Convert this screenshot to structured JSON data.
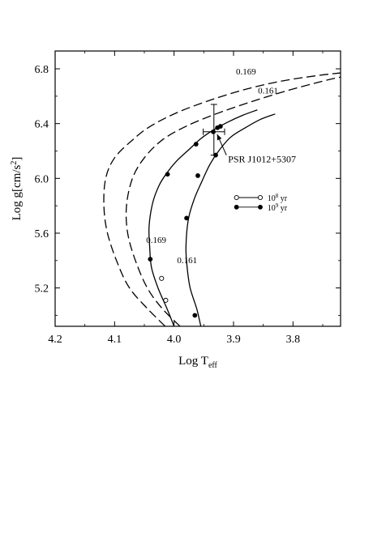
{
  "chart_data": {
    "type": "line",
    "xlabel": "Log T",
    "xlabel_sub": "eff",
    "ylabel": "Log g[cm/s",
    "ylabel_sup": "2",
    "ylabel_end": "]",
    "xlim": [
      4.2,
      3.72
    ],
    "ylim": [
      4.92,
      6.93
    ],
    "x_reversed": true,
    "xticks": [
      4.2,
      4.1,
      4.0,
      3.9,
      3.8
    ],
    "xtick_labels": [
      "4.2",
      "4.1",
      "4.0",
      "3.9",
      "3.8"
    ],
    "yticks": [
      5.2,
      5.6,
      6.0,
      6.4,
      6.8
    ],
    "ytick_labels": [
      "5.2",
      "5.6",
      "6.0",
      "6.4",
      "6.8"
    ],
    "series": [
      {
        "name": "0.169",
        "style": "dashed",
        "x": [
          4.015,
          4.045,
          4.075,
          4.095,
          4.112,
          4.118,
          4.115,
          4.1,
          4.07,
          4.04,
          3.995,
          3.94,
          3.88,
          3.82,
          3.76,
          3.72
        ],
        "y": [
          4.92,
          5.05,
          5.2,
          5.38,
          5.6,
          5.8,
          6.0,
          6.15,
          6.28,
          6.38,
          6.48,
          6.57,
          6.65,
          6.71,
          6.75,
          6.77
        ]
      },
      {
        "name": "0.161",
        "style": "dashed",
        "x": [
          3.99,
          4.02,
          4.045,
          4.065,
          4.078,
          4.08,
          4.07,
          4.05,
          4.02,
          3.98,
          3.93,
          3.87,
          3.81,
          3.75,
          3.72
        ],
        "y": [
          4.92,
          5.05,
          5.2,
          5.4,
          5.6,
          5.8,
          6.0,
          6.15,
          6.28,
          6.38,
          6.47,
          6.56,
          6.64,
          6.71,
          6.74
        ]
      },
      {
        "name": "0.169",
        "style": "solid",
        "x": [
          4.0,
          4.012,
          4.027,
          4.038,
          4.041,
          4.042,
          4.036,
          4.025,
          4.012,
          3.995,
          3.975,
          3.955,
          3.935,
          3.91,
          3.885,
          3.86
        ],
        "y": [
          4.92,
          5.05,
          5.2,
          5.35,
          5.5,
          5.65,
          5.82,
          5.95,
          6.04,
          6.13,
          6.21,
          6.29,
          6.35,
          6.41,
          6.46,
          6.5
        ]
      },
      {
        "name": "0.161",
        "style": "solid",
        "x": [
          3.955,
          3.962,
          3.973,
          3.978,
          3.98,
          3.976,
          3.966,
          3.953,
          3.94,
          3.925,
          3.905,
          3.88,
          3.855,
          3.83
        ],
        "y": [
          4.92,
          5.05,
          5.2,
          5.35,
          5.5,
          5.7,
          5.85,
          5.98,
          6.1,
          6.2,
          6.3,
          6.37,
          6.43,
          6.47
        ]
      }
    ],
    "age_markers": {
      "open": {
        "label": "10",
        "label_sup": "8",
        "label_end": " yr",
        "points": [
          [
            4.021,
            5.27
          ],
          [
            4.014,
            5.11
          ]
        ]
      },
      "filled": {
        "label": "10",
        "label_sup": "9",
        "label_end": " yr",
        "points": [
          [
            4.04,
            5.41
          ],
          [
            4.011,
            6.03
          ],
          [
            3.963,
            6.25
          ],
          [
            3.934,
            6.34
          ],
          [
            3.965,
            5.0
          ],
          [
            3.979,
            5.71
          ],
          [
            3.96,
            6.02
          ],
          [
            3.93,
            6.17
          ],
          [
            3.922,
            6.38
          ],
          [
            3.927,
            6.37
          ]
        ]
      }
    },
    "curve_labels": [
      {
        "text": "0.169",
        "x": 3.879,
        "y": 6.76
      },
      {
        "text": "0.161",
        "x": 3.842,
        "y": 6.62
      },
      {
        "text": "0.169",
        "x": 4.03,
        "y": 5.53
      },
      {
        "text": "0.161",
        "x": 3.978,
        "y": 5.38
      }
    ],
    "observation": {
      "label": "PSR J1012+5307",
      "x": 3.933,
      "y": 6.34,
      "x_err": 0.018,
      "y_err_plus": 0.2,
      "y_err_minus": 0.17,
      "label_x": 3.912,
      "label_y": 6.14
    },
    "legend": {
      "position": "right",
      "entries": [
        {
          "marker": "open",
          "label": "10",
          "sup": "8",
          "end": " yr"
        },
        {
          "marker": "filled",
          "label": "10",
          "sup": "9",
          "end": " yr"
        }
      ]
    }
  }
}
